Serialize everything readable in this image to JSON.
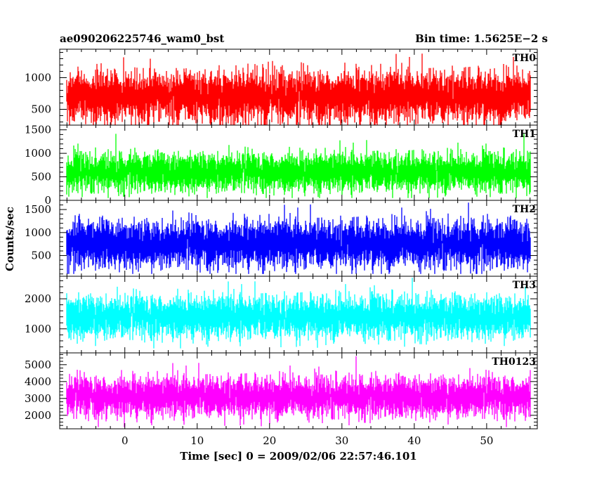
{
  "chart_data": {
    "type": "line",
    "title_left": "ae090206225746_wam0_bst",
    "title_right": "Bin time: 1.5625E−2 s",
    "xlabel": "Time [sec] 0 = 2009/02/06 22:57:46.101",
    "ylabel": "Counts/sec",
    "xlim": [
      -9,
      57
    ],
    "xticks": [
      0,
      10,
      20,
      30,
      40,
      50
    ],
    "x_data_range": [
      -8,
      56
    ],
    "bin_time": 0.015625,
    "grid": false,
    "panels": [
      {
        "name": "TH0",
        "color": "#ff0000",
        "ylim": [
          250,
          1450
        ],
        "yticks": [
          500,
          1000
        ],
        "mean": 700,
        "sd": 190,
        "min": 250,
        "max": 1450
      },
      {
        "name": "TH1",
        "color": "#00ff00",
        "ylim": [
          0,
          1600
        ],
        "yticks": [
          0,
          500,
          1000,
          1500
        ],
        "mean": 600,
        "sd": 190,
        "min": 50,
        "max": 1550
      },
      {
        "name": "TH2",
        "color": "#0000ff",
        "ylim": [
          50,
          1700
        ],
        "yticks": [
          500,
          1000,
          1500
        ],
        "mean": 750,
        "sd": 240,
        "min": 100,
        "max": 1650
      },
      {
        "name": "TH3",
        "color": "#00ffff",
        "ylim": [
          200,
          2750
        ],
        "yticks": [
          1000,
          2000
        ],
        "mean": 1400,
        "sd": 330,
        "min": 350,
        "max": 2700
      },
      {
        "name": "TH0123",
        "color": "#ff00ff",
        "ylim": [
          1200,
          5700
        ],
        "yticks": [
          2000,
          3000,
          4000,
          5000
        ],
        "mean": 3100,
        "sd": 560,
        "min": 1300,
        "max": 5600
      }
    ]
  }
}
